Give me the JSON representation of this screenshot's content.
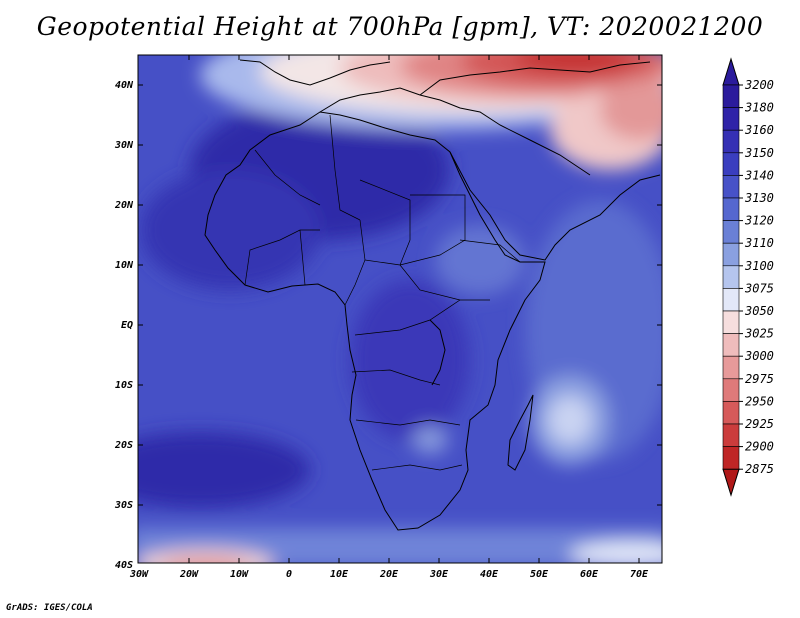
{
  "title": "Geopotential Height at 700hPa [gpm], VT: 2020021200",
  "credit": "GrADS: IGES/COLA",
  "map": {
    "lat_labels": [
      "40N",
      "30N",
      "20N",
      "10N",
      "EQ",
      "10S",
      "20S",
      "30S",
      "40S"
    ],
    "lon_labels": [
      "30W",
      "20W",
      "10W",
      "0",
      "10E",
      "20E",
      "30E",
      "40E",
      "50E",
      "60E",
      "70E"
    ]
  },
  "colorbar": {
    "levels": [
      "3200",
      "3180",
      "3160",
      "3150",
      "3140",
      "3130",
      "3120",
      "3110",
      "3100",
      "3075",
      "3050",
      "3025",
      "3000",
      "2975",
      "2950",
      "2925",
      "2900",
      "2875"
    ],
    "colors": [
      "#2b1b9c",
      "#2f23a8",
      "#3530b4",
      "#3a3ebf",
      "#4752c8",
      "#5567cf",
      "#6a80d6",
      "#8aa0e0",
      "#b5c5ee",
      "#e3e8f8",
      "#f6dede",
      "#efbcbc",
      "#e79a9a",
      "#df7a7a",
      "#d65a5a",
      "#cb3c3c",
      "#bf2626",
      "#b01818"
    ]
  }
}
